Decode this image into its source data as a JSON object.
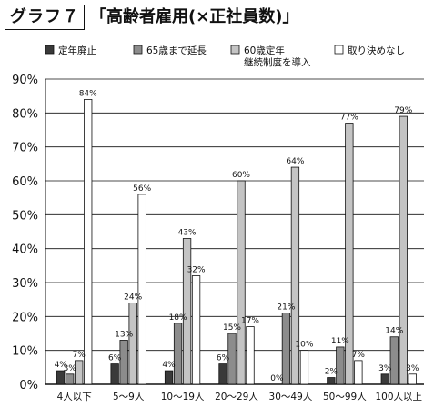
{
  "figure": {
    "label": "グラフ７",
    "title": "「高齢者雇用(×正社員数)」"
  },
  "colors": {
    "series": [
      "#3a3a3a",
      "#8c8c8c",
      "#c4c4c4",
      "#ffffff"
    ],
    "stroke": "#111111",
    "grid": "#111111"
  },
  "chart_data": {
    "type": "bar",
    "title": "「高齢者雇用(×正社員数)」",
    "xlabel": "",
    "ylabel": "",
    "ylim": [
      0,
      90
    ],
    "ytick_step": 10,
    "ytick_suffix": "%",
    "grid": true,
    "legend_position": "top",
    "categories": [
      "4人以下",
      "5～9人",
      "10～19人",
      "20～29人",
      "30～49人",
      "50～99人",
      "100人以上"
    ],
    "series": [
      {
        "name": "定年廃止",
        "legend_lines": [
          "定年廃止"
        ],
        "values": [
          4,
          6,
          4,
          6,
          0,
          2,
          3
        ]
      },
      {
        "name": "65歳まで延長",
        "legend_lines": [
          "65歳まで延長"
        ],
        "values": [
          3,
          13,
          18,
          15,
          21,
          11,
          14
        ]
      },
      {
        "name": "60歳定年継続制度を導入",
        "legend_lines": [
          "60歳定年",
          "継続制度を導入"
        ],
        "values": [
          7,
          24,
          43,
          60,
          64,
          77,
          79
        ]
      },
      {
        "name": "取り決めなし",
        "legend_lines": [
          "取り決めなし"
        ],
        "values": [
          84,
          56,
          32,
          17,
          10,
          7,
          3
        ]
      }
    ]
  }
}
